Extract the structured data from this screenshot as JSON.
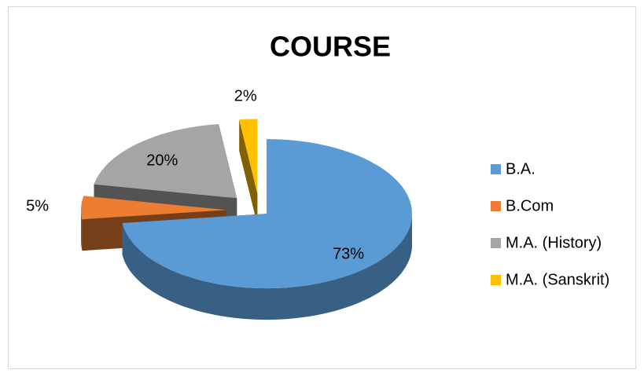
{
  "chart_data": {
    "type": "pie",
    "title": "COURSE",
    "categories": [
      "B.A.",
      "B.Com",
      "M.A. (History)",
      "M.A. (Sanskrit)"
    ],
    "values": [
      73,
      5,
      20,
      2
    ],
    "value_labels": [
      "73%",
      "5%",
      "20%",
      "2%"
    ],
    "colors": [
      "#5b9bd5",
      "#ed7d31",
      "#a5a5a5",
      "#ffc000"
    ],
    "legend": "right"
  }
}
